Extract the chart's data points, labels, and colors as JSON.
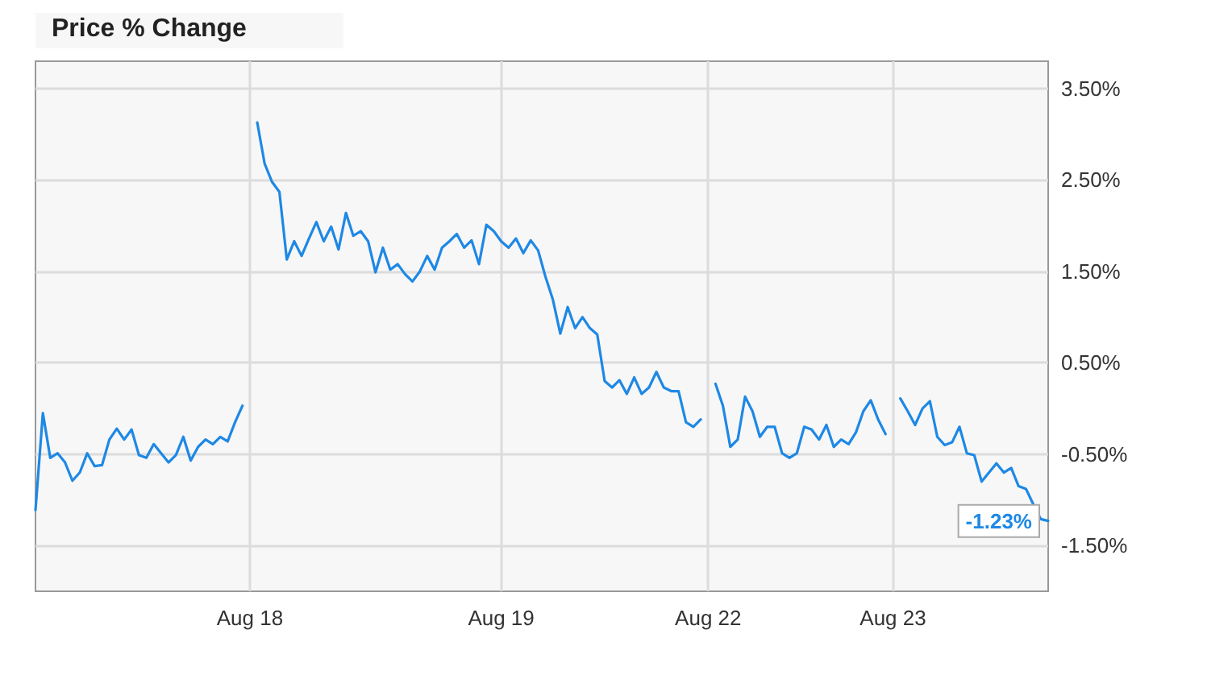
{
  "chart_data": {
    "type": "line",
    "title": "Price % Change",
    "categories": [
      null,
      null,
      null,
      null,
      null,
      null,
      null,
      null,
      null,
      null,
      null,
      null,
      null,
      null,
      null,
      null,
      null,
      null,
      null,
      null,
      null,
      null,
      null,
      null,
      null,
      null,
      null,
      null,
      null,
      "Aug 18",
      null,
      null,
      null,
      null,
      null,
      null,
      null,
      null,
      null,
      null,
      null,
      null,
      null,
      null,
      null,
      null,
      null,
      null,
      null,
      null,
      null,
      null,
      null,
      null,
      null,
      null,
      null,
      null,
      null,
      null,
      null,
      null,
      null,
      "Aug 19",
      null,
      null,
      null,
      null,
      null,
      null,
      null,
      null,
      null,
      null,
      null,
      null,
      null,
      null,
      null,
      null,
      null,
      null,
      null,
      null,
      null,
      null,
      null,
      null,
      null,
      null,
      null,
      "Aug 22",
      null,
      null,
      null,
      null,
      null,
      null,
      null,
      null,
      null,
      null,
      null,
      null,
      null,
      null,
      null,
      null,
      null,
      null,
      null,
      null,
      null,
      null,
      null,
      null,
      "Aug 23",
      null,
      null,
      null,
      null,
      null,
      null,
      null,
      null,
      null,
      null,
      null,
      null,
      null,
      null,
      null,
      null,
      null,
      null,
      null,
      null,
      null
    ],
    "series": [
      {
        "color": "#1e88e5",
        "values": [
          -1.11,
          -0.05,
          -0.54,
          -0.49,
          -0.59,
          -0.79,
          -0.7,
          -0.49,
          -0.63,
          -0.62,
          -0.34,
          -0.22,
          -0.34,
          -0.23,
          -0.51,
          -0.54,
          -0.39,
          -0.49,
          -0.59,
          -0.51,
          -0.31,
          -0.57,
          -0.42,
          -0.34,
          -0.39,
          -0.31,
          -0.36,
          -0.15,
          0.03,
          null,
          3.13,
          2.68,
          2.48,
          2.37,
          1.63,
          1.83,
          1.67,
          1.86,
          2.04,
          1.83,
          1.99,
          1.74,
          2.14,
          1.89,
          1.94,
          1.83,
          1.49,
          1.76,
          1.52,
          1.58,
          1.47,
          1.39,
          1.5,
          1.67,
          1.52,
          1.76,
          1.83,
          1.91,
          1.76,
          1.84,
          1.58,
          2.01,
          1.94,
          1.83,
          1.76,
          1.86,
          1.7,
          1.84,
          1.73,
          1.44,
          1.19,
          0.82,
          1.11,
          0.88,
          1.0,
          0.88,
          0.81,
          0.3,
          0.23,
          0.31,
          0.16,
          0.34,
          0.16,
          0.23,
          0.4,
          0.23,
          0.19,
          0.19,
          -0.15,
          -0.2,
          -0.12,
          null,
          0.27,
          0.03,
          -0.42,
          -0.34,
          0.13,
          -0.03,
          -0.31,
          -0.2,
          -0.2,
          -0.49,
          -0.54,
          -0.49,
          -0.2,
          -0.23,
          -0.34,
          -0.18,
          -0.42,
          -0.34,
          -0.39,
          -0.26,
          -0.03,
          0.09,
          -0.12,
          -0.28,
          null,
          0.11,
          -0.03,
          -0.18,
          0.0,
          0.08,
          -0.31,
          -0.4,
          -0.37,
          -0.2,
          -0.49,
          -0.51,
          -0.8,
          -0.7,
          -0.6,
          -0.7,
          -0.65,
          -0.85,
          -0.88,
          -1.05,
          -1.21,
          -1.23
        ]
      }
    ],
    "ylim": [
      -2.0,
      3.8
    ],
    "yticks": [
      {
        "value": -1.5,
        "label": "-1.50%"
      },
      {
        "value": -0.5,
        "label": "-0.50%"
      },
      {
        "value": 0.5,
        "label": "0.50%"
      },
      {
        "value": 1.5,
        "label": "1.50%"
      },
      {
        "value": 2.5,
        "label": "2.50%"
      },
      {
        "value": 3.5,
        "label": "3.50%"
      }
    ],
    "annotations": [
      "-1.23%"
    ],
    "grid": true,
    "marker": "none",
    "line_style": "solid"
  }
}
